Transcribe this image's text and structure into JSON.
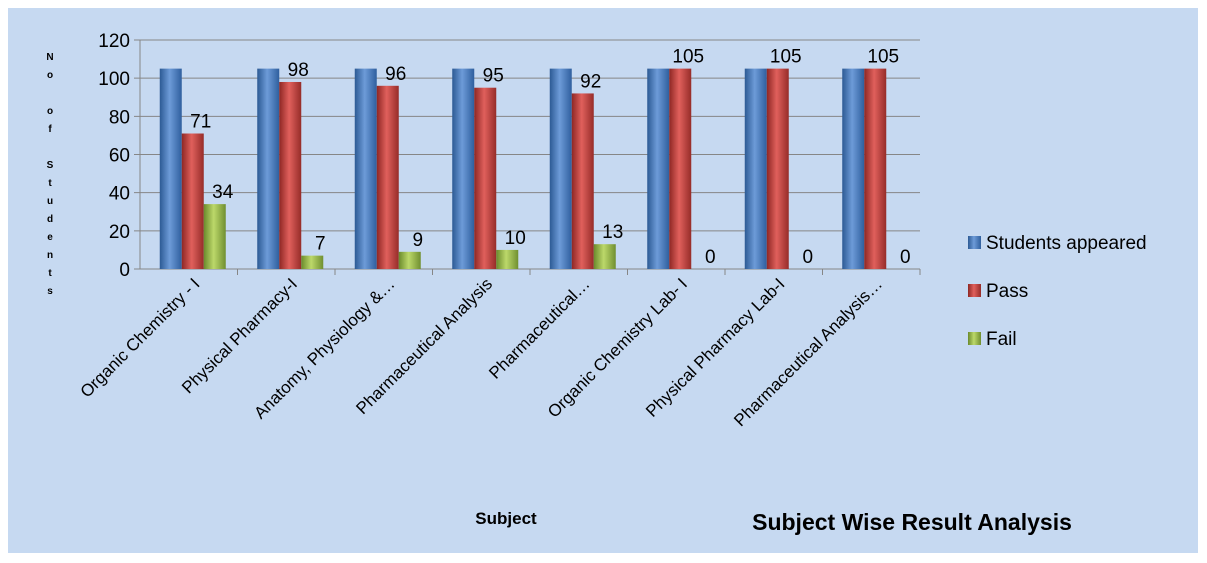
{
  "chart_data": {
    "type": "bar",
    "title": "Subject Wise Result Analysis",
    "xlabel": "Subject",
    "ylabel": "No of Students",
    "ylim": [
      0,
      120
    ],
    "yticks": [
      0,
      20,
      40,
      60,
      80,
      100,
      120
    ],
    "grid": true,
    "legend_position": "right",
    "categories": [
      "Organic Chemistry - I",
      "Physical Pharmacy-I",
      "Anatomy, Physiology &…",
      "Pharmaceutical Analysis",
      "Pharmaceutical…",
      "Organic Chemistry Lab- I",
      "Physical Pharmacy Lab-I",
      "Pharmaceutical Analysis…"
    ],
    "series": [
      {
        "name": "Students appeared",
        "color": "#4f81bd",
        "values": [
          105,
          105,
          105,
          105,
          105,
          105,
          105,
          105
        ],
        "show_labels": false
      },
      {
        "name": "Pass",
        "color": "#c0504d",
        "values": [
          71,
          98,
          96,
          95,
          92,
          105,
          105,
          105
        ],
        "show_labels": true
      },
      {
        "name": "Fail",
        "color": "#9bbb59",
        "values": [
          34,
          7,
          9,
          10,
          13,
          0,
          0,
          0
        ],
        "show_labels": true
      }
    ]
  }
}
